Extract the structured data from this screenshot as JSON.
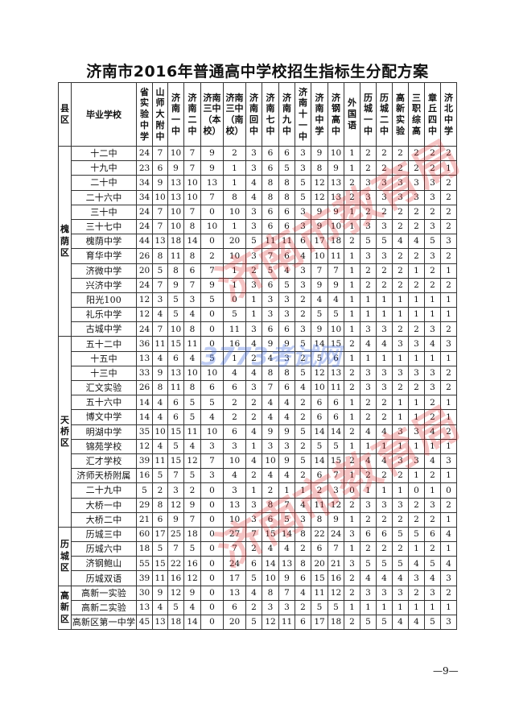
{
  "title": "济南市2016年普通高中学校招生指标生分配方案",
  "headers": {
    "county": "县区",
    "school": "毕业学校",
    "columns": [
      "省实验中学",
      "山师大附中",
      "济南一中",
      "济南二中",
      "济南三中（本校）",
      "济南三中（南校）",
      "济南回中",
      "济南七中",
      "济南九中",
      "济南十一中",
      "济南中学",
      "济钢高中",
      "外国语",
      "历城一中",
      "历城二中",
      "高新实验",
      "三职综高",
      "章丘四中",
      "济北中学"
    ]
  },
  "groups": [
    {
      "county": "槐荫区",
      "rows": [
        {
          "school": "十二中",
          "values": [
            24,
            7,
            10,
            7,
            9,
            2,
            3,
            6,
            6,
            3,
            9,
            10,
            1,
            2,
            2,
            2,
            2,
            2,
            2
          ]
        },
        {
          "school": "十九中",
          "values": [
            23,
            6,
            9,
            7,
            9,
            1,
            3,
            6,
            5,
            3,
            8,
            9,
            1,
            2,
            2,
            2,
            2,
            2,
            1
          ]
        },
        {
          "school": "二十中",
          "values": [
            34,
            9,
            13,
            10,
            13,
            1,
            4,
            8,
            8,
            5,
            12,
            13,
            2,
            3,
            3,
            3,
            3,
            3,
            2
          ]
        },
        {
          "school": "二十六中",
          "values": [
            34,
            10,
            13,
            10,
            7,
            8,
            4,
            8,
            8,
            5,
            12,
            13,
            2,
            3,
            3,
            3,
            3,
            3,
            2
          ]
        },
        {
          "school": "三十中",
          "values": [
            24,
            7,
            10,
            7,
            0,
            10,
            3,
            6,
            6,
            3,
            9,
            9,
            1,
            2,
            2,
            2,
            2,
            2,
            2
          ]
        },
        {
          "school": "三十七中",
          "values": [
            24,
            7,
            10,
            8,
            10,
            1,
            3,
            6,
            6,
            3,
            9,
            10,
            1,
            3,
            3,
            2,
            2,
            3,
            2
          ]
        },
        {
          "school": "槐荫中学",
          "values": [
            44,
            13,
            18,
            14,
            0,
            20,
            5,
            11,
            11,
            6,
            17,
            18,
            2,
            5,
            5,
            4,
            4,
            5,
            3
          ]
        },
        {
          "school": "育华中学",
          "values": [
            26,
            8,
            11,
            8,
            2,
            10,
            3,
            7,
            6,
            4,
            10,
            11,
            1,
            3,
            3,
            2,
            2,
            3,
            2
          ]
        },
        {
          "school": "济微中学",
          "values": [
            20,
            5,
            8,
            6,
            7,
            1,
            2,
            5,
            4,
            3,
            7,
            7,
            1,
            2,
            2,
            2,
            1,
            2,
            1
          ]
        },
        {
          "school": "兴济中学",
          "values": [
            24,
            7,
            9,
            7,
            9,
            1,
            3,
            6,
            5,
            3,
            9,
            9,
            1,
            2,
            2,
            2,
            2,
            2,
            2
          ]
        },
        {
          "school": "阳光100",
          "values": [
            12,
            3,
            5,
            3,
            5,
            0,
            1,
            3,
            3,
            2,
            4,
            4,
            1,
            1,
            1,
            1,
            1,
            1,
            1
          ]
        },
        {
          "school": "礼乐中学",
          "values": [
            12,
            4,
            5,
            4,
            0,
            5,
            1,
            3,
            3,
            2,
            5,
            5,
            1,
            1,
            1,
            1,
            1,
            1,
            1
          ]
        },
        {
          "school": "古城中学",
          "values": [
            24,
            7,
            10,
            8,
            0,
            11,
            3,
            6,
            6,
            3,
            9,
            10,
            1,
            3,
            3,
            2,
            2,
            3,
            2
          ]
        }
      ]
    },
    {
      "county": "天桥区",
      "rows": [
        {
          "school": "五十二中",
          "values": [
            36,
            11,
            15,
            11,
            0,
            16,
            4,
            9,
            9,
            5,
            14,
            15,
            2,
            4,
            4,
            3,
            3,
            4,
            3
          ]
        },
        {
          "school": "十五中",
          "values": [
            13,
            4,
            6,
            4,
            5,
            1,
            2,
            4,
            3,
            2,
            5,
            6,
            1,
            1,
            1,
            1,
            1,
            1,
            1
          ]
        },
        {
          "school": "十三中",
          "values": [
            33,
            9,
            13,
            10,
            10,
            4,
            4,
            8,
            8,
            5,
            12,
            13,
            2,
            3,
            3,
            3,
            3,
            3,
            2
          ]
        },
        {
          "school": "汇文实验",
          "values": [
            26,
            8,
            11,
            8,
            6,
            6,
            3,
            7,
            6,
            4,
            10,
            11,
            2,
            3,
            3,
            2,
            2,
            3,
            2
          ]
        },
        {
          "school": "五十六中",
          "values": [
            14,
            4,
            6,
            5,
            5,
            2,
            2,
            4,
            4,
            2,
            6,
            6,
            1,
            2,
            2,
            1,
            1,
            2,
            1
          ]
        },
        {
          "school": "博文中学",
          "values": [
            14,
            4,
            6,
            5,
            4,
            2,
            2,
            4,
            4,
            2,
            6,
            6,
            1,
            2,
            2,
            1,
            1,
            2,
            1
          ]
        },
        {
          "school": "明湖中学",
          "values": [
            35,
            10,
            15,
            11,
            10,
            6,
            4,
            9,
            9,
            5,
            14,
            14,
            2,
            4,
            4,
            3,
            3,
            4,
            2
          ]
        },
        {
          "school": "锦苑学校",
          "values": [
            12,
            4,
            5,
            4,
            3,
            3,
            1,
            3,
            3,
            2,
            5,
            5,
            1,
            1,
            1,
            1,
            1,
            1,
            1
          ]
        },
        {
          "school": "汇才学校",
          "values": [
            39,
            11,
            15,
            12,
            7,
            10,
            4,
            10,
            9,
            5,
            14,
            15,
            2,
            4,
            4,
            3,
            3,
            4,
            3
          ]
        },
        {
          "school": "济师天桥附属",
          "values": [
            16,
            5,
            7,
            5,
            3,
            4,
            2,
            4,
            4,
            2,
            6,
            7,
            1,
            2,
            2,
            2,
            1,
            2,
            1
          ]
        },
        {
          "school": "二十九中",
          "values": [
            5,
            2,
            3,
            2,
            0,
            3,
            1,
            2,
            1,
            1,
            2,
            3,
            0,
            1,
            1,
            1,
            0,
            1,
            0
          ]
        },
        {
          "school": "大桥一中",
          "values": [
            29,
            8,
            12,
            9,
            0,
            13,
            3,
            8,
            7,
            4,
            11,
            12,
            2,
            3,
            3,
            3,
            2,
            3,
            2
          ]
        },
        {
          "school": "大桥二中",
          "values": [
            21,
            6,
            9,
            7,
            0,
            10,
            3,
            6,
            5,
            3,
            8,
            9,
            1,
            2,
            2,
            2,
            2,
            2,
            1
          ]
        }
      ]
    },
    {
      "county": "历城区",
      "rows": [
        {
          "school": "历城三中",
          "values": [
            60,
            17,
            25,
            18,
            0,
            27,
            7,
            15,
            14,
            8,
            22,
            24,
            3,
            6,
            6,
            5,
            5,
            6,
            4
          ]
        },
        {
          "school": "历城六中",
          "values": [
            18,
            5,
            7,
            5,
            0,
            7,
            2,
            4,
            4,
            2,
            6,
            7,
            1,
            2,
            2,
            2,
            1,
            2,
            1
          ]
        },
        {
          "school": "济钢鲍山",
          "values": [
            55,
            15,
            22,
            16,
            0,
            24,
            6,
            14,
            13,
            8,
            20,
            21,
            3,
            5,
            5,
            5,
            4,
            5,
            4
          ]
        },
        {
          "school": "历城双语",
          "values": [
            39,
            11,
            16,
            12,
            0,
            17,
            5,
            10,
            9,
            6,
            15,
            16,
            2,
            4,
            4,
            4,
            3,
            4,
            3
          ]
        }
      ]
    },
    {
      "county": "高新区",
      "rows": [
        {
          "school": "高新一实验",
          "values": [
            30,
            9,
            12,
            9,
            0,
            13,
            4,
            8,
            7,
            4,
            11,
            12,
            2,
            3,
            3,
            3,
            2,
            3,
            2
          ]
        },
        {
          "school": "高新二实验",
          "values": [
            13,
            4,
            5,
            4,
            0,
            6,
            2,
            3,
            3,
            2,
            5,
            5,
            1,
            1,
            1,
            1,
            1,
            1,
            1
          ]
        },
        {
          "school": "高新区第一中学",
          "values": [
            45,
            13,
            18,
            14,
            0,
            20,
            5,
            12,
            11,
            6,
            17,
            18,
            2,
            5,
            5,
            4,
            4,
            5,
            3
          ]
        }
      ]
    }
  ],
  "watermarks": {
    "stamp": "济南市教育局",
    "site": "3773考试网",
    "site_url": "3773.com.cn"
  },
  "page_number": "—9—"
}
